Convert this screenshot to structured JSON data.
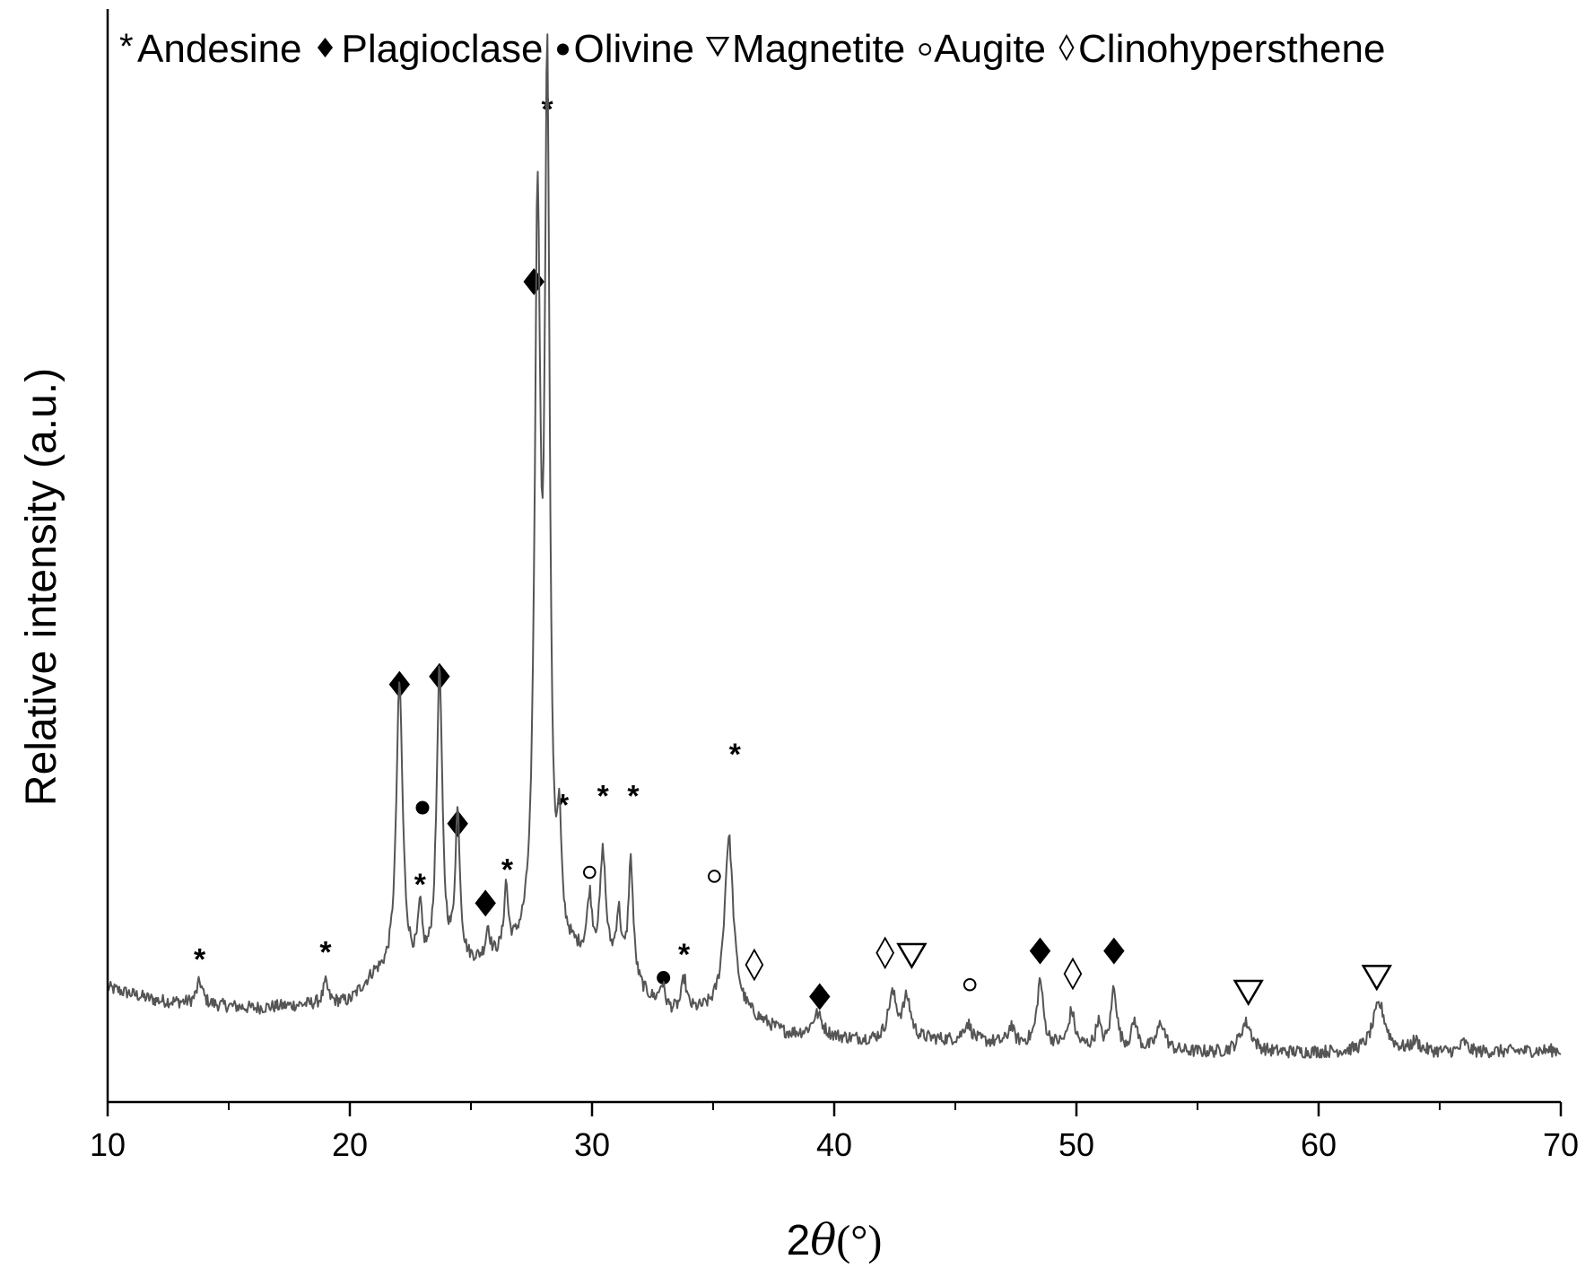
{
  "chart_data": {
    "type": "line",
    "title": "",
    "xlabel_prefix": "2",
    "xlabel_symbol": "θ",
    "xlabel_unit": "(°)",
    "ylabel": "Relative intensity (a.u.)",
    "xlim": [
      10,
      70
    ],
    "ylim": [
      0,
      100
    ],
    "x_ticks": [
      10,
      20,
      30,
      40,
      50,
      60,
      70
    ],
    "x_tick_labels": [
      "10",
      "20",
      "30",
      "40",
      "50",
      "60",
      "70"
    ],
    "y_ticks_shown": false,
    "grid": false,
    "line_color": "#555555",
    "baseline": [
      [
        10,
        11.5
      ],
      [
        12,
        10.2
      ],
      [
        16,
        9.4
      ],
      [
        20,
        10.0
      ],
      [
        21,
        12.5
      ],
      [
        24,
        13.0
      ],
      [
        27,
        14.5
      ],
      [
        29,
        14.5
      ],
      [
        31,
        13.0
      ],
      [
        33,
        8.8
      ],
      [
        36,
        9.0
      ],
      [
        38,
        6.8
      ],
      [
        42,
        6.0
      ],
      [
        44,
        6.2
      ],
      [
        48,
        5.8
      ],
      [
        52,
        5.2
      ],
      [
        56,
        4.9
      ],
      [
        62,
        5.0
      ],
      [
        66,
        5.0
      ],
      [
        70,
        5.2
      ]
    ],
    "peaks": [
      {
        "x": 13.8,
        "y": 2.2,
        "w": 0.15
      },
      {
        "x": 19.0,
        "y": 2.0,
        "w": 0.12
      },
      {
        "x": 22.05,
        "y": 29.0,
        "w": 0.16
      },
      {
        "x": 22.9,
        "y": 5.5,
        "w": 0.1
      },
      {
        "x": 23.7,
        "y": 30.0,
        "w": 0.14
      },
      {
        "x": 24.45,
        "y": 15.0,
        "w": 0.12
      },
      {
        "x": 25.7,
        "y": 3.0,
        "w": 0.1
      },
      {
        "x": 26.45,
        "y": 6.5,
        "w": 0.1
      },
      {
        "x": 27.75,
        "y": 72.0,
        "w": 0.14
      },
      {
        "x": 28.15,
        "y": 85.0,
        "w": 0.12
      },
      {
        "x": 28.65,
        "y": 10.0,
        "w": 0.1
      },
      {
        "x": 29.9,
        "y": 6.0,
        "w": 0.12
      },
      {
        "x": 30.45,
        "y": 11.0,
        "w": 0.14
      },
      {
        "x": 31.1,
        "y": 5.5,
        "w": 0.12
      },
      {
        "x": 31.6,
        "y": 12.0,
        "w": 0.12
      },
      {
        "x": 32.9,
        "y": 2.5,
        "w": 0.15
      },
      {
        "x": 33.8,
        "y": 3.2,
        "w": 0.12
      },
      {
        "x": 35.65,
        "y": 17.5,
        "w": 0.22
      },
      {
        "x": 39.3,
        "y": 2.2,
        "w": 0.25
      },
      {
        "x": 42.4,
        "y": 4.5,
        "w": 0.22
      },
      {
        "x": 43.0,
        "y": 4.0,
        "w": 0.2
      },
      {
        "x": 45.5,
        "y": 1.8,
        "w": 0.2
      },
      {
        "x": 47.3,
        "y": 1.8,
        "w": 0.12
      },
      {
        "x": 48.5,
        "y": 6.5,
        "w": 0.15
      },
      {
        "x": 49.8,
        "y": 3.5,
        "w": 0.15
      },
      {
        "x": 50.9,
        "y": 2.5,
        "w": 0.12
      },
      {
        "x": 51.55,
        "y": 6.2,
        "w": 0.14
      },
      {
        "x": 52.4,
        "y": 2.8,
        "w": 0.14
      },
      {
        "x": 53.5,
        "y": 2.8,
        "w": 0.2
      },
      {
        "x": 57.0,
        "y": 3.0,
        "w": 0.3
      },
      {
        "x": 62.5,
        "y": 4.8,
        "w": 0.32
      },
      {
        "x": 64.0,
        "y": 1.0,
        "w": 0.2
      },
      {
        "x": 66.0,
        "y": 1.0,
        "w": 0.15
      }
    ],
    "legend": {
      "position": "top",
      "entries": [
        {
          "symbol": "asterisk",
          "name": "Andesine"
        },
        {
          "symbol": "filled-diamond",
          "name": "Plagioclase"
        },
        {
          "symbol": "filled-circle",
          "name": "Olivine"
        },
        {
          "symbol": "open-triangle-down",
          "name": "Magnetite"
        },
        {
          "symbol": "open-circle",
          "name": "Augite"
        },
        {
          "symbol": "open-diamond",
          "name": "Clinohypersthene"
        }
      ]
    },
    "annotations": [
      {
        "x": 13.8,
        "y": 14.5,
        "symbol": "asterisk"
      },
      {
        "x": 19.0,
        "y": 15.2,
        "symbol": "asterisk"
      },
      {
        "x": 22.05,
        "y": 42.0,
        "symbol": "filled-diamond"
      },
      {
        "x": 23.7,
        "y": 42.8,
        "symbol": "filled-diamond"
      },
      {
        "x": 23.0,
        "y": 29.6,
        "symbol": "filled-circle"
      },
      {
        "x": 22.9,
        "y": 22.0,
        "symbol": "asterisk"
      },
      {
        "x": 24.45,
        "y": 28.0,
        "symbol": "filled-diamond"
      },
      {
        "x": 25.6,
        "y": 20.0,
        "symbol": "filled-diamond"
      },
      {
        "x": 26.5,
        "y": 23.5,
        "symbol": "asterisk"
      },
      {
        "x": 27.6,
        "y": 82.5,
        "symbol": "filled-diamond"
      },
      {
        "x": 28.15,
        "y": 100.0,
        "symbol": "asterisk"
      },
      {
        "x": 28.8,
        "y": 30.0,
        "symbol": "asterisk"
      },
      {
        "x": 30.45,
        "y": 30.9,
        "symbol": "asterisk"
      },
      {
        "x": 31.7,
        "y": 30.9,
        "symbol": "asterisk"
      },
      {
        "x": 29.9,
        "y": 23.1,
        "symbol": "open-circle"
      },
      {
        "x": 35.05,
        "y": 22.7,
        "symbol": "open-circle"
      },
      {
        "x": 35.9,
        "y": 35.1,
        "symbol": "asterisk"
      },
      {
        "x": 33.8,
        "y": 15.0,
        "symbol": "asterisk"
      },
      {
        "x": 32.95,
        "y": 12.5,
        "symbol": "filled-circle"
      },
      {
        "x": 36.7,
        "y": 13.8,
        "symbol": "open-diamond"
      },
      {
        "x": 39.4,
        "y": 10.6,
        "symbol": "filled-diamond"
      },
      {
        "x": 42.1,
        "y": 15.0,
        "symbol": "open-diamond"
      },
      {
        "x": 43.2,
        "y": 14.8,
        "symbol": "open-triangle-down"
      },
      {
        "x": 45.6,
        "y": 11.8,
        "symbol": "open-circle"
      },
      {
        "x": 48.5,
        "y": 15.2,
        "symbol": "filled-diamond"
      },
      {
        "x": 49.85,
        "y": 12.9,
        "symbol": "open-diamond"
      },
      {
        "x": 51.55,
        "y": 15.2,
        "symbol": "filled-diamond"
      },
      {
        "x": 57.1,
        "y": 11.1,
        "symbol": "open-triangle-down"
      },
      {
        "x": 62.4,
        "y": 12.6,
        "symbol": "open-triangle-down"
      }
    ]
  }
}
